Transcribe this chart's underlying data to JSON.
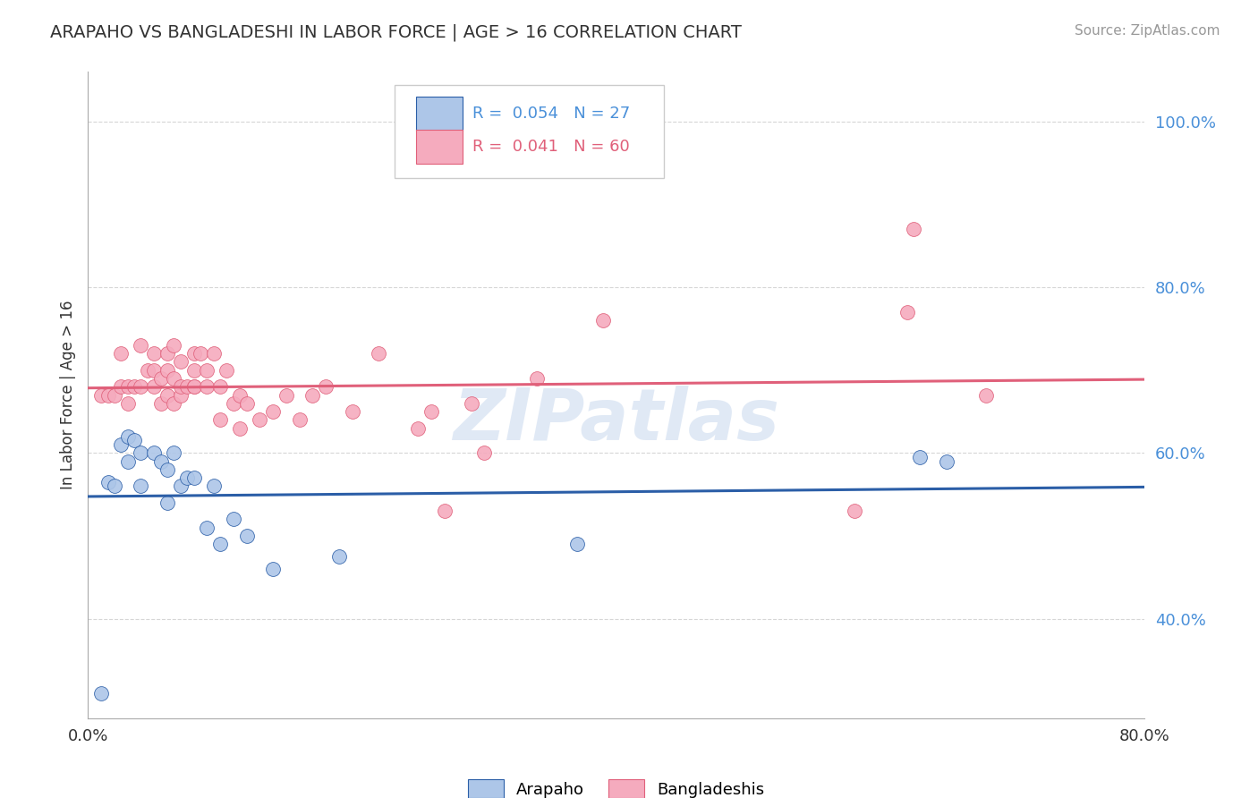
{
  "title": "ARAPAHO VS BANGLADESHI IN LABOR FORCE | AGE > 16 CORRELATION CHART",
  "source": "Source: ZipAtlas.com",
  "ylabel": "In Labor Force | Age > 16",
  "xlim": [
    0.0,
    0.8
  ],
  "ylim": [
    0.28,
    1.06
  ],
  "yticks": [
    0.4,
    0.6,
    0.8,
    1.0
  ],
  "ytick_labels": [
    "40.0%",
    "60.0%",
    "80.0%",
    "100.0%"
  ],
  "xticks": [
    0.0,
    0.08,
    0.16,
    0.24,
    0.32,
    0.4,
    0.48,
    0.56,
    0.64,
    0.72,
    0.8
  ],
  "xtick_labels_left": "0.0%",
  "xtick_labels_right": "80.0%",
  "arapaho_R": "0.054",
  "arapaho_N": "27",
  "bangladeshi_R": "0.041",
  "bangladeshi_N": "60",
  "arapaho_color": "#adc6e8",
  "bangladeshi_color": "#f5abbe",
  "arapaho_line_color": "#2b5ea7",
  "bangladeshi_line_color": "#e0607a",
  "watermark": "ZIPatlas",
  "arapaho_x": [
    0.01,
    0.015,
    0.02,
    0.025,
    0.03,
    0.03,
    0.035,
    0.04,
    0.04,
    0.05,
    0.055,
    0.06,
    0.06,
    0.065,
    0.07,
    0.075,
    0.08,
    0.09,
    0.095,
    0.1,
    0.11,
    0.12,
    0.14,
    0.19,
    0.37,
    0.63,
    0.65
  ],
  "arapaho_y": [
    0.31,
    0.565,
    0.56,
    0.61,
    0.59,
    0.62,
    0.615,
    0.6,
    0.56,
    0.6,
    0.59,
    0.54,
    0.58,
    0.6,
    0.56,
    0.57,
    0.57,
    0.51,
    0.56,
    0.49,
    0.52,
    0.5,
    0.46,
    0.475,
    0.49,
    0.595,
    0.59
  ],
  "bangladeshi_x": [
    0.01,
    0.015,
    0.02,
    0.025,
    0.025,
    0.03,
    0.03,
    0.035,
    0.04,
    0.04,
    0.045,
    0.05,
    0.05,
    0.05,
    0.055,
    0.055,
    0.06,
    0.06,
    0.06,
    0.065,
    0.065,
    0.065,
    0.07,
    0.07,
    0.07,
    0.075,
    0.08,
    0.08,
    0.08,
    0.08,
    0.085,
    0.09,
    0.09,
    0.095,
    0.1,
    0.1,
    0.105,
    0.11,
    0.115,
    0.115,
    0.12,
    0.13,
    0.14,
    0.15,
    0.16,
    0.17,
    0.18,
    0.2,
    0.22,
    0.25,
    0.26,
    0.27,
    0.29,
    0.3,
    0.34,
    0.39,
    0.58,
    0.62,
    0.625,
    0.68
  ],
  "bangladeshi_y": [
    0.67,
    0.67,
    0.67,
    0.68,
    0.72,
    0.66,
    0.68,
    0.68,
    0.68,
    0.73,
    0.7,
    0.68,
    0.7,
    0.72,
    0.66,
    0.69,
    0.67,
    0.7,
    0.72,
    0.66,
    0.69,
    0.73,
    0.67,
    0.68,
    0.71,
    0.68,
    0.68,
    0.7,
    0.72,
    0.68,
    0.72,
    0.68,
    0.7,
    0.72,
    0.64,
    0.68,
    0.7,
    0.66,
    0.63,
    0.67,
    0.66,
    0.64,
    0.65,
    0.67,
    0.64,
    0.67,
    0.68,
    0.65,
    0.72,
    0.63,
    0.65,
    0.53,
    0.66,
    0.6,
    0.69,
    0.76,
    0.53,
    0.77,
    0.87,
    0.67
  ]
}
